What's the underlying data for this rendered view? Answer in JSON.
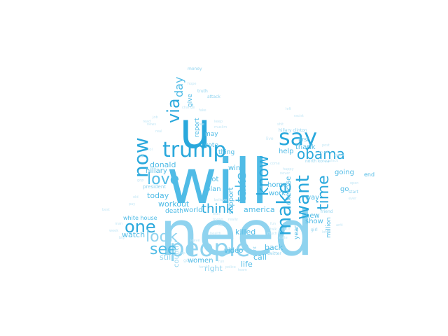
{
  "palette": {
    "dark": "#29a8dc",
    "mid": "#4fbbe6",
    "light": "#8fd3ef",
    "pale": "#c3e7f6"
  },
  "words": {
    "will": "will",
    "need": "need",
    "u": "u",
    "people": "people",
    "trump": "trump",
    "say": "say",
    "obama": "obama",
    "via": "via",
    "now": "now",
    "one": "one",
    "love": "love",
    "look": "look",
    "see": "see",
    "make": "make",
    "want": "want",
    "time": "time",
    "know": "know",
    "take": "take",
    "think": "think",
    "day": "day",
    "donald": "donald",
    "hillary": "hillary",
    "today": "today",
    "watch": "watch",
    "workout": "workout",
    "world": "world",
    "america": "america",
    "country": "country",
    "women": "women",
    "still": "still",
    "right": "right",
    "life": "life",
    "call": "call",
    "back": "back",
    "video": "video",
    "killed": "killed",
    "death": "death",
    "plan": "plan",
    "got": "got",
    "win": "win",
    "support": "support",
    "home": "home",
    "work": "work",
    "exercise": "exercise",
    "way": "way",
    "new": "new",
    "show": "show",
    "going": "going",
    "go": "go",
    "thank": "thank",
    "help": "help",
    "vote": "vote",
    "thing": "thing",
    "may": "may",
    "report": "report",
    "give": "give",
    "million": "million",
    "year": "year",
    "white_house": "white house",
    "end": "end",
    "first": "first",
    "north_korea": "north korea",
    "hillary_clinton": "hillary clinton",
    "president": "president",
    "girl": "girl",
    "twitter": "twitter",
    "fight": "fight",
    "start": "start",
    "friend": "friend",
    "money": "money",
    "attack": "attack",
    "truth": "truth",
    "good": "good",
    "family": "family",
    "police": "police",
    "team": "team",
    "run": "run",
    "stop": "stop",
    "hope": "hope",
    "fake": "fake",
    "best": "best",
    "man": "man",
    "week": "week",
    "big": "big",
    "news": "news",
    "real": "real",
    "gop": "gop",
    "tell": "tell",
    "life_small": "live",
    "come": "come",
    "happy": "happy",
    "never": "never",
    "fun": "fun",
    "much": "much",
    "state": "state",
    "long": "long",
    "anti": "anti",
    "talk": "talk",
    "ever": "ever",
    "game": "game",
    "must": "must",
    "trying": "trying",
    "us": "us",
    "really": "really",
    "change": "change",
    "keep": "keep",
    "muslim": "muslim",
    "leave": "leave",
    "health": "health",
    "hot": "hot",
    "put": "put",
    "left": "left",
    "believe": "believe",
    "wall": "wall",
    "black": "black",
    "lol": "lol",
    "old": "old",
    "pay": "pay",
    "open": "open",
    "racist": "racist",
    "post": "post",
    "shit": "shit",
    "job": "job",
    "read": "read",
    "free": "free"
  }
}
